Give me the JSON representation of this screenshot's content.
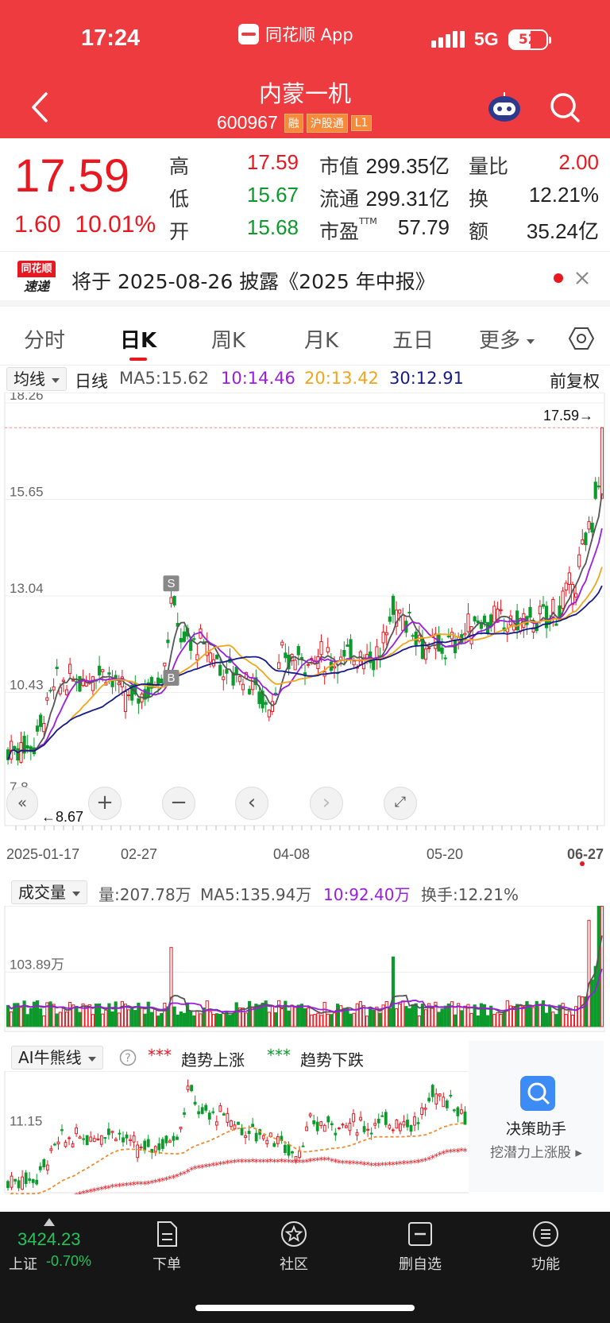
{
  "status": {
    "time": "17:24",
    "app": "同花顺 App",
    "network": "5G",
    "battery": "52"
  },
  "header": {
    "name": "内蒙一机",
    "code": "600967",
    "badges": [
      "融",
      "沪股通",
      "L1"
    ]
  },
  "quote": {
    "price": "17.59",
    "change": "1.60",
    "change_pct": "10.01%",
    "rows": [
      {
        "l1": "高",
        "v1": "17.59",
        "c1": "red",
        "l2": "市值",
        "v2": "299.35亿",
        "l3": "量比",
        "v3": "2.00",
        "c3": "red"
      },
      {
        "l1": "低",
        "v1": "15.67",
        "c1": "green",
        "l2": "流通",
        "v2": "299.31亿",
        "l3": "换",
        "v3": "12.21%",
        "c3": "black"
      },
      {
        "l1": "开",
        "v1": "15.68",
        "c1": "green",
        "l2": "市盈",
        "v2": "57.79",
        "l3": "额",
        "v3": "35.24亿",
        "c3": "black"
      }
    ],
    "pe_sup": "TTM"
  },
  "notice": {
    "logo_top": "同花顺",
    "logo_bottom": "速递",
    "text": "将于 2025-08-26 披露《2025 年中报》"
  },
  "tabs": [
    "分时",
    "日K",
    "周K",
    "月K",
    "五日",
    "更多"
  ],
  "ma": {
    "select": "均线",
    "type": "日线",
    "ma5": "MA5:15.62",
    "ma10": "10:14.46",
    "ma20": "20:13.42",
    "ma30": "30:12.91",
    "adjust": "前复权"
  },
  "chart_data": {
    "type": "candlestick",
    "y_ticks": [
      "18.26",
      "15.65",
      "13.04",
      "10.43",
      "7.8"
    ],
    "x_ticks": [
      "2025-01-17",
      "02-27",
      "04-08",
      "05-20",
      "06-27"
    ],
    "last_label": "17.59→",
    "low_label": "8.67",
    "colors": {
      "up": "#e9171f",
      "down": "#0c9a2c",
      "ma5": "#555555",
      "ma10": "#9b1de0",
      "ma20": "#f2a51a",
      "ma30": "#161a8a"
    },
    "markers": [
      "S",
      "B"
    ]
  },
  "volume": {
    "select": "成交量",
    "vol": "量:207.78万",
    "ma5": "MA5:135.94万",
    "ma10": "10:92.40万",
    "turnover": "换手:12.21%",
    "axis": "103.89万"
  },
  "ai": {
    "select": "AI牛熊线",
    "up_label": "趋势上涨",
    "down_label": "趋势下跌",
    "axis": "11.15",
    "assist_title": "决策助手",
    "assist_sub": "挖潜力上涨股"
  },
  "bottom": {
    "index_val": "3424.23",
    "index_name": "上证",
    "index_chg": "-0.70%",
    "nav": [
      "下单",
      "社区",
      "删自选",
      "功能"
    ]
  }
}
